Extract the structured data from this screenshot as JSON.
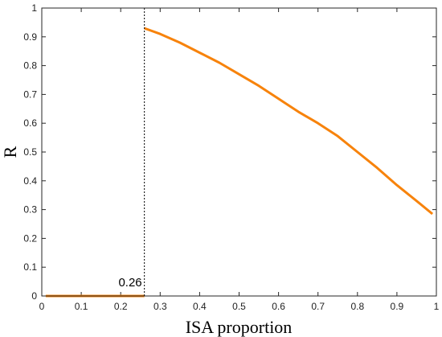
{
  "chart_data": {
    "type": "line",
    "title": "",
    "xlabel": "ISA proportion",
    "ylabel": "R",
    "xlim": [
      0,
      1
    ],
    "ylim": [
      0,
      1
    ],
    "xticks": [
      "0",
      "0.1",
      "0.2",
      "0.3",
      "0.4",
      "0.5",
      "0.6",
      "0.7",
      "0.8",
      "0.9",
      "1"
    ],
    "yticks": [
      "0",
      "0.1",
      "0.2",
      "0.3",
      "0.4",
      "0.5",
      "0.6",
      "0.7",
      "0.8",
      "0.9",
      "1"
    ],
    "grid": false,
    "legend": "none",
    "series": [
      {
        "color": "#f7830c",
        "segments": [
          {
            "x": [
              0.01,
              0.26
            ],
            "y": [
              0,
              0
            ]
          },
          {
            "x": [
              0.26,
              0.3,
              0.35,
              0.4,
              0.45,
              0.5,
              0.55,
              0.6,
              0.65,
              0.7,
              0.75,
              0.8,
              0.85,
              0.9,
              0.95,
              0.99
            ],
            "y": [
              0.93,
              0.91,
              0.88,
              0.845,
              0.81,
              0.77,
              0.73,
              0.685,
              0.64,
              0.6,
              0.555,
              0.5,
              0.445,
              0.385,
              0.33,
              0.285
            ]
          }
        ]
      }
    ],
    "vline": {
      "x": 0.26,
      "style": "dotted",
      "color": "#000000"
    },
    "annotations": [
      {
        "text": "0.26",
        "x": 0.26,
        "y": 0
      }
    ]
  }
}
